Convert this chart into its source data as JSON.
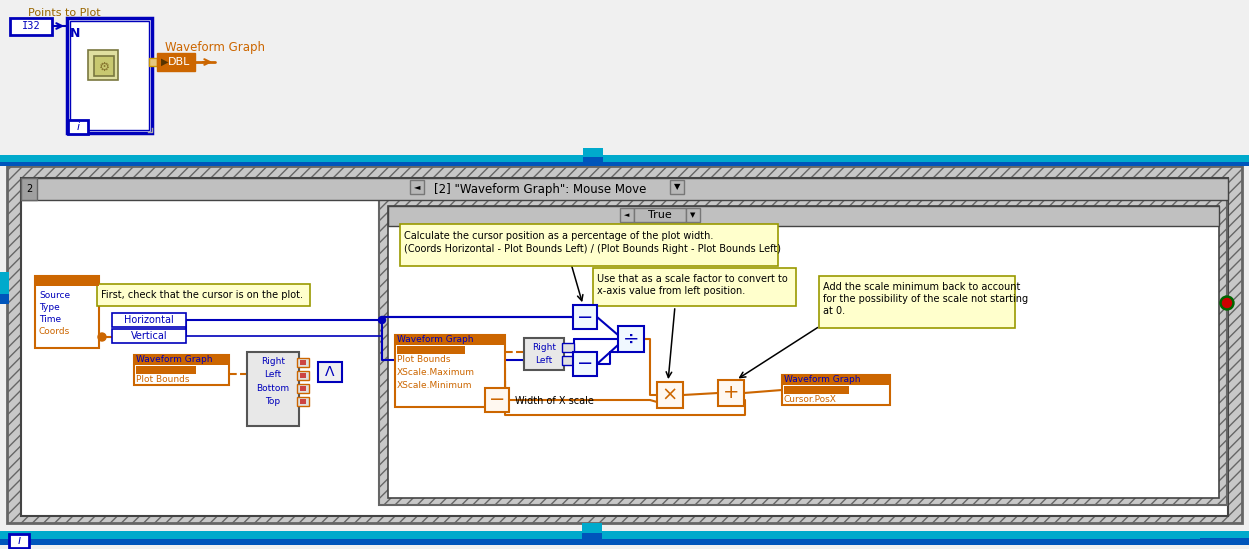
{
  "bg": "#f0f0f0",
  "white": "#ffffff",
  "blue": "#0000bb",
  "orange": "#cc6600",
  "dark": "#333333",
  "gray": "#808080",
  "lgray": "#d0d0d0",
  "dgray": "#555555",
  "yellow": "#ffffcc",
  "cyan_top": "#00aacc",
  "cyan_bar": "#009bbb",
  "blue_bar": "#0055aa",
  "hatch_bg": "#c8c8c8",
  "title": "[2] \"Waveform Graph\": Mouse Move",
  "true_label": "True",
  "pts_label": "Points to Plot",
  "wg_top": "Waveform Graph",
  "c1": "First, check that the cursor is on the plot.",
  "c2a": "Calculate the cursor position as a percentage of the plot width.",
  "c2b": "(Coords Horizontal - Plot Bounds Left) / (Plot Bounds Right - Plot Bounds Left)",
  "c3a": "Use that as a scale factor to convert to",
  "c3b": "x-axis value from left position.",
  "c4a": "Add the scale minimum back to account",
  "c4b": "for the possibility of the scale not starting",
  "c4c": "at 0.",
  "src": "Source",
  "typ": "Type",
  "tim": "Time",
  "crd": "Coords",
  "hor": "Horizontal",
  "ver": "Vertical",
  "wg1": "Waveform Graph",
  "pb1": "Plot Bounds",
  "rt1": "Right",
  "lf1": "Left",
  "bt1": "Bottom",
  "tp1": "Top",
  "wg2": "Waveform Graph",
  "pb2": "Plot Bounds",
  "xmx": "XScale.Maximum",
  "xmn": "XScale.Minimum",
  "wxs": "Width of X scale",
  "rt2": "Right",
  "lf2": "Left",
  "wg3": "Waveform Graph",
  "cpx": "Cursor.PosX",
  "i32": "I32",
  "dbl": "DBL"
}
